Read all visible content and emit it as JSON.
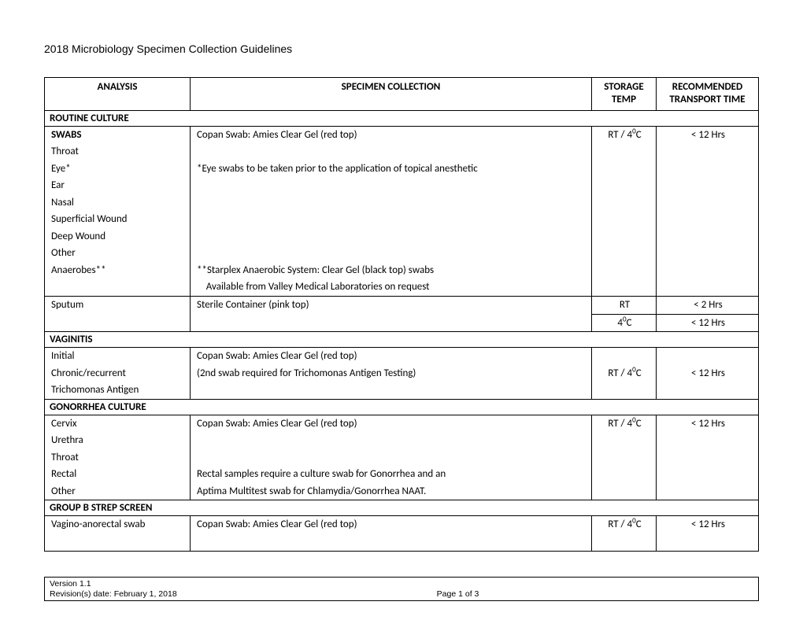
{
  "title": "2018 Microbiology Specimen Collection Guidelines",
  "headers": {
    "analysis": "ANALYSIS",
    "specimen": "SPECIMEN COLLECTION",
    "storage": "STORAGE TEMP",
    "time": "RECOMMENDED TRANSPORT TIME"
  },
  "sections": {
    "routine": "ROUTINE CULTURE",
    "vaginitis": "VAGINITIS",
    "gonorrhea": "GONORRHEA CULTURE",
    "groupb": "GROUP B STREP SCREEN"
  },
  "swabs": {
    "label": "SWABS",
    "items": [
      "Throat",
      "Eye*",
      "Ear",
      "Nasal",
      "Superficial Wound",
      "Deep Wound",
      "Other",
      "Anaerobes**"
    ],
    "specimen_main": "Copan Swab: Amies Clear Gel (red top)",
    "specimen_note1": "*Eye swabs to be taken prior to the application of topical anesthetic",
    "specimen_note2": "**Starplex Anaerobic System: Clear Gel (black top) swabs",
    "specimen_note3": "    Available from Valley Medical Laboratories on request",
    "storage": "RT / 4",
    "storage_unit": "0",
    "storage_suffix": "C",
    "time": "< 12 Hrs"
  },
  "sputum": {
    "label": "Sputum",
    "specimen": "Sterile Container (pink top)",
    "storage1": "RT",
    "time1": "< 2 Hrs",
    "storage2_prefix": "4",
    "storage2_unit": "0",
    "storage2_suffix": "C",
    "time2": "< 12 Hrs"
  },
  "vaginitis": {
    "items": [
      "Initial",
      "Chronic/recurrent",
      "Trichomonas Antigen"
    ],
    "specimen1": "Copan Swab: Amies Clear Gel (red top)",
    "specimen2": "(2nd swab required for Trichomonas Antigen Testing)",
    "storage": "RT / 4",
    "storage_unit": "0",
    "storage_suffix": "C",
    "time": "< 12 Hrs"
  },
  "gonorrhea": {
    "items": [
      "Cervix",
      "Urethra",
      "Throat",
      "Rectal",
      "Other"
    ],
    "specimen1": "Copan Swab: Amies Clear Gel (red top)",
    "specimen2": "Rectal samples require a culture swab for Gonorrhea and an",
    "specimen3": " Aptima Multitest swab for Chlamydia/Gonorrhea NAAT.",
    "storage": "RT / 4",
    "storage_unit": "0",
    "storage_suffix": "C",
    "time": "< 12 Hrs"
  },
  "groupb": {
    "item": "Vagino-anorectal swab",
    "specimen": "Copan Swab: Amies Clear Gel (red top)",
    "storage": "RT / 4",
    "storage_unit": "0",
    "storage_suffix": "C",
    "time": "< 12 Hrs"
  },
  "footer": {
    "version": "Version 1.1",
    "revision": "Revision(s) date: February 1, 2018",
    "page": "Page 1 of 3"
  }
}
